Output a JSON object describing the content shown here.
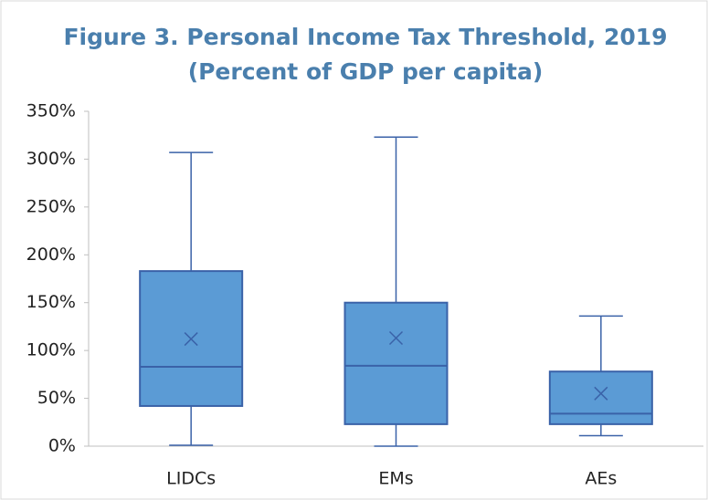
{
  "chart_data": {
    "type": "box",
    "title": "Figure 3. Personal Income Tax Threshold, 2019",
    "subtitle": "(Percent of GDP per capita)",
    "categories": [
      "LIDCs",
      "EMs",
      "AEs"
    ],
    "color": "#5b9bd5",
    "boxes": [
      {
        "min": 1,
        "q1": 42,
        "median": 83,
        "q3": 183,
        "max": 307,
        "mean": 112
      },
      {
        "min": 0,
        "q1": 23,
        "median": 84,
        "q3": 150,
        "max": 323,
        "mean": 113
      },
      {
        "min": 11,
        "q1": 23,
        "median": 34,
        "q3": 78,
        "max": 136,
        "mean": 55
      }
    ],
    "ylim": [
      0,
      350
    ],
    "yticks": [
      {
        "value": 0,
        "label": "0%"
      },
      {
        "value": 50,
        "label": "50%"
      },
      {
        "value": 100,
        "label": "100%"
      },
      {
        "value": 150,
        "label": "150%"
      },
      {
        "value": 200,
        "label": "200%"
      },
      {
        "value": 250,
        "label": "250%"
      },
      {
        "value": 300,
        "label": "300%"
      },
      {
        "value": 350,
        "label": "350%"
      }
    ],
    "grid": false
  }
}
